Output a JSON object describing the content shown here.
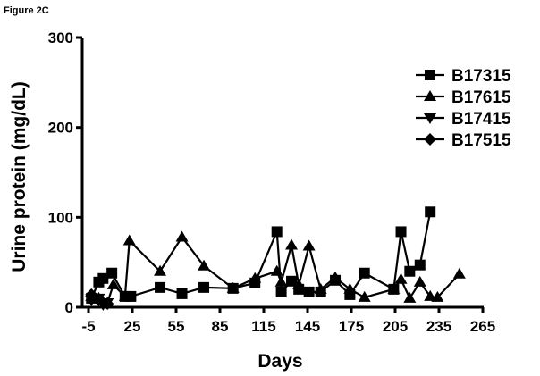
{
  "figure_label": "Figure 2C",
  "chart_data": {
    "type": "line",
    "title": "",
    "xlabel": "Days",
    "ylabel": "Urine protein (mg/dL)",
    "xlim": [
      -8,
      270
    ],
    "ylim": [
      0,
      300
    ],
    "x_ticks": [
      -5,
      25,
      55,
      85,
      115,
      145,
      175,
      205,
      235,
      265
    ],
    "y_ticks": [
      0,
      100,
      200,
      300
    ],
    "grid": false,
    "legend": "top-right",
    "series": [
      {
        "name": "B17315",
        "marker": "square",
        "x": [
          -3,
          2,
          5,
          11,
          20,
          24,
          44,
          59,
          74,
          94,
          109,
          124,
          127,
          134,
          139,
          146,
          154,
          164,
          174,
          184,
          204,
          209,
          215,
          222,
          229
        ],
        "y": [
          10,
          28,
          32,
          38,
          12,
          12,
          22,
          15,
          22,
          21,
          27,
          84,
          17,
          29,
          20,
          17,
          17,
          30,
          14,
          38,
          20,
          84,
          40,
          47,
          106
        ]
      },
      {
        "name": "B17615",
        "marker": "triangle-up",
        "x": [
          -3,
          2,
          8,
          12,
          20,
          23,
          44,
          59,
          74,
          94,
          109,
          124,
          127,
          134,
          139,
          146,
          154,
          164,
          174,
          184,
          204,
          209,
          215,
          222,
          229,
          234,
          249
        ],
        "y": [
          12,
          10,
          5,
          25,
          12,
          74,
          40,
          78,
          46,
          21,
          32,
          40,
          28,
          69,
          25,
          68,
          20,
          33,
          20,
          11,
          20,
          31,
          10,
          28,
          12,
          11,
          37
        ]
      },
      {
        "name": "B17415",
        "marker": "triangle-down",
        "x": [
          -3,
          2,
          5,
          8
        ],
        "y": [
          8,
          10,
          3,
          5
        ]
      },
      {
        "name": "B17515",
        "marker": "diamond",
        "x": [
          -3,
          2,
          5,
          8
        ],
        "y": [
          14,
          8,
          5,
          4
        ]
      }
    ]
  }
}
